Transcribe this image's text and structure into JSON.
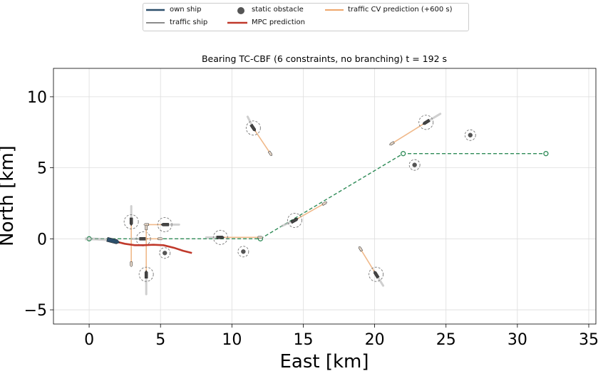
{
  "chart_data": {
    "type": "scatter",
    "title": "Bearing TC-CBF (6 constraints, no branching)   t =   192 s",
    "xlabel": "East [km]",
    "ylabel": "North [km]",
    "xlim": [
      -2.5,
      35.5
    ],
    "ylim": [
      -6,
      12
    ],
    "xticks": [
      0,
      5,
      10,
      15,
      20,
      25,
      30,
      35
    ],
    "yticks": [
      -5,
      0,
      5,
      10
    ],
    "xtick_labels": [
      "0",
      "5",
      "10",
      "15",
      "20",
      "25",
      "30",
      "35"
    ],
    "ytick_labels": [
      "−5",
      "0",
      "5",
      "10"
    ],
    "grid": true,
    "legend": {
      "placement": "top-center",
      "entries": [
        {
          "label": "own ship",
          "color": "#2c4f6b"
        },
        {
          "label": "traffic ship",
          "color": "#666666"
        },
        {
          "label": "static obstacle",
          "color": "#555555"
        },
        {
          "label": "MPC prediction",
          "color": "#c0392b"
        },
        {
          "label": "traffic CV prediction (+600 s)",
          "color": "#e8883a"
        }
      ]
    },
    "waypoints": {
      "x": [
        0,
        12,
        22,
        32
      ],
      "y": [
        0,
        0,
        6,
        6
      ],
      "color": "#2e8b57"
    },
    "own_ship": {
      "x": 1.7,
      "y": -0.15,
      "trail": {
        "x": [
          -0.3,
          0.5,
          1.2,
          1.7
        ],
        "y": [
          0,
          -0.02,
          -0.06,
          -0.15
        ]
      }
    },
    "mpc_prediction": {
      "x": [
        1.7,
        2.5,
        3.2,
        3.8,
        4.5,
        5.2,
        6.0,
        6.6,
        7.2
      ],
      "y": [
        -0.15,
        -0.35,
        -0.45,
        -0.45,
        -0.42,
        -0.45,
        -0.65,
        -0.85,
        -1.0
      ]
    },
    "traffic_ships": [
      {
        "x": 2.95,
        "y": 1.2,
        "pred_end": [
          2.95,
          -1.8
        ],
        "trail_end": [
          2.95,
          2.3
        ]
      },
      {
        "x": 3.8,
        "y": 0.0,
        "pred_end": [
          5.0,
          0.0
        ],
        "trail_end": [
          3.0,
          0.0
        ]
      },
      {
        "x": 5.3,
        "y": 1.0,
        "pred_end": [
          4.0,
          1.0
        ],
        "trail_end": [
          6.3,
          1.0
        ]
      },
      {
        "x": 4.0,
        "y": -2.5,
        "pred_end": [
          4.0,
          0.8
        ],
        "trail_end": [
          4.0,
          -3.9
        ]
      },
      {
        "x": 9.2,
        "y": 0.1,
        "pred_end": [
          12.0,
          0.1
        ],
        "trail_end": [
          8.2,
          0.1
        ]
      },
      {
        "x": 11.5,
        "y": 7.8,
        "pred_end": [
          12.7,
          6.0
        ],
        "trail_end": [
          11.1,
          8.6
        ]
      },
      {
        "x": 14.4,
        "y": 1.3,
        "pred_end": [
          16.5,
          2.5
        ],
        "trail_end": [
          13.5,
          0.9
        ]
      },
      {
        "x": 23.6,
        "y": 8.2,
        "pred_end": [
          21.2,
          6.7
        ],
        "trail_end": [
          24.6,
          8.8
        ]
      },
      {
        "x": 20.1,
        "y": -2.5,
        "pred_end": [
          19.0,
          -0.7
        ],
        "trail_end": [
          20.6,
          -3.3
        ]
      }
    ],
    "static_obstacles": [
      {
        "x": 5.3,
        "y": -1.0
      },
      {
        "x": 10.8,
        "y": -0.9
      },
      {
        "x": 22.8,
        "y": 5.2
      },
      {
        "x": 26.7,
        "y": 7.3
      }
    ]
  }
}
